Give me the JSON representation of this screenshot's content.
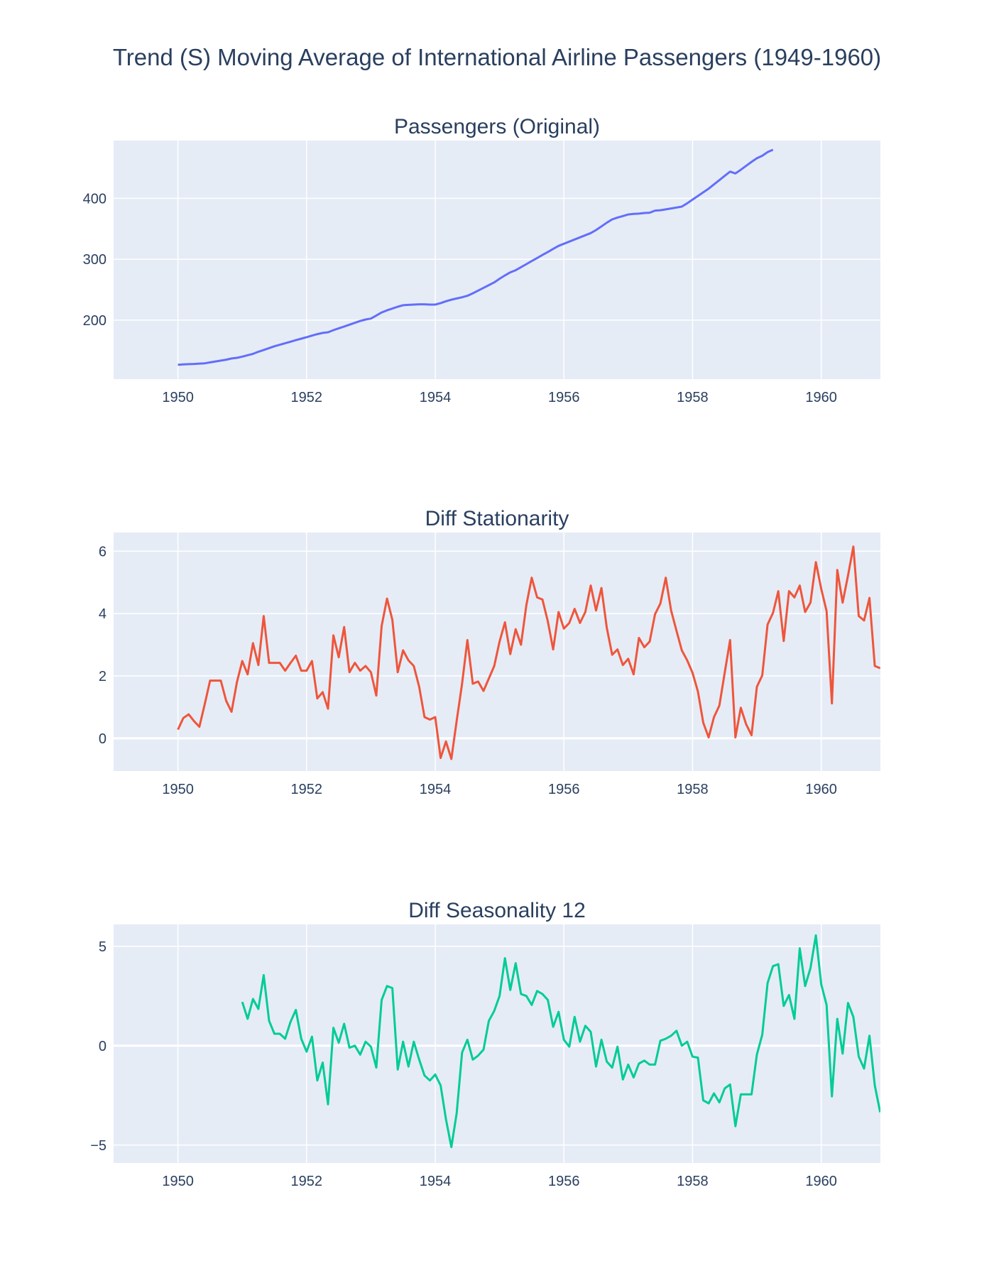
{
  "chart_title": "Trend (S) Moving Average of International Airline Passengers (1949-1960)",
  "colors": {
    "plot_bg": "#e5ecf6",
    "grid": "#ffffff",
    "text": "#2a3f5f",
    "series_original": "#636efa",
    "series_stationarity": "#ef553b",
    "series_seasonality": "#00cc96"
  },
  "chart_data": [
    {
      "type": "line",
      "title": "Passengers (Original)",
      "xlabel": "",
      "ylabel": "",
      "x_start": 1950.0,
      "x_step": 0.08333,
      "xlim": [
        1949.0,
        1960.92
      ],
      "ylim": [
        103,
        495
      ],
      "x_ticks": [
        1950,
        1952,
        1954,
        1956,
        1958,
        1960
      ],
      "y_ticks": [
        200,
        300,
        400
      ],
      "grid": true,
      "series": [
        {
          "values": [
            126.7,
            127.2,
            127.6,
            128.0,
            128.6,
            129.0,
            130.5,
            132.0,
            133.5,
            135.0,
            137.0,
            138.0,
            140.0,
            142.3,
            144.5,
            148.0,
            151.0,
            154.0,
            157.0,
            159.5,
            162.0,
            164.5,
            167.0,
            169.5,
            172.0,
            174.5,
            177.0,
            179.0,
            180.0,
            183.5,
            186.5,
            189.5,
            192.5,
            195.5,
            198.5,
            201.0,
            202.5,
            207.5,
            212.5,
            216.0,
            219.0,
            222.0,
            224.5,
            225.0,
            225.5,
            226.0,
            226.0,
            225.5,
            225.5,
            228.0,
            231.0,
            233.5,
            235.5,
            237.5,
            240.0,
            244.0,
            248.5,
            253.0,
            257.5,
            262.0,
            268.0,
            273.5,
            278.5,
            282.0,
            287.0,
            292.0,
            297.0,
            302.0,
            307.0,
            312.0,
            317.0,
            322.0,
            325.5,
            329.0,
            332.5,
            336.0,
            339.5,
            343.0,
            348.0,
            354.0,
            360.0,
            365.5,
            368.5,
            371.0,
            373.5,
            374.5,
            375.0,
            376.0,
            376.5,
            380.0,
            380.5,
            382.0,
            383.5,
            385.0,
            386.5,
            392.0,
            398.0,
            404.0,
            410.0,
            416.0,
            423.0,
            430.0,
            437.0,
            444.0,
            441.0,
            447.0,
            453.5,
            460.0,
            466.0,
            470.0,
            476.0,
            480.0
          ]
        }
      ]
    },
    {
      "type": "line",
      "title": "Diff Stationarity",
      "xlabel": "",
      "ylabel": "",
      "x_start": 1950.0,
      "x_step": 0.08333,
      "xlim": [
        1949.0,
        1960.92
      ],
      "ylim": [
        -1.05,
        6.6
      ],
      "x_ticks": [
        1950,
        1952,
        1954,
        1956,
        1958,
        1960
      ],
      "y_ticks": [
        0,
        2,
        4,
        6
      ],
      "grid": true,
      "series": [
        {
          "values": [
            0.28,
            0.65,
            0.77,
            0.55,
            0.37,
            1.1,
            1.85,
            1.85,
            1.85,
            1.2,
            0.85,
            1.8,
            2.48,
            2.05,
            3.05,
            2.35,
            3.92,
            2.42,
            2.42,
            2.42,
            2.17,
            2.42,
            2.65,
            2.17,
            2.17,
            2.48,
            1.28,
            1.48,
            0.95,
            3.3,
            2.6,
            3.57,
            2.12,
            2.42,
            2.17,
            2.32,
            2.12,
            1.37,
            3.6,
            4.48,
            3.8,
            2.12,
            2.82,
            2.5,
            2.32,
            1.65,
            0.68,
            0.6,
            0.68,
            -0.63,
            -0.1,
            -0.66,
            0.56,
            1.75,
            3.15,
            1.75,
            1.82,
            1.52,
            1.92,
            2.32,
            3.1,
            3.72,
            2.7,
            3.5,
            3.0,
            4.28,
            5.15,
            4.52,
            4.45,
            3.75,
            2.85,
            4.05,
            3.52,
            3.7,
            4.15,
            3.7,
            4.05,
            4.9,
            4.1,
            4.82,
            3.55,
            2.68,
            2.85,
            2.35,
            2.55,
            2.05,
            3.22,
            2.92,
            3.1,
            3.98,
            4.32,
            5.15,
            4.1,
            3.45,
            2.82,
            2.5,
            2.1,
            1.5,
            0.5,
            0.03,
            0.68,
            1.05,
            2.1,
            3.15,
            0.03,
            0.98,
            0.45,
            0.1,
            1.65,
            2.02,
            3.65,
            4.02,
            4.72,
            3.12,
            4.72,
            4.52,
            4.9,
            4.05,
            4.35,
            5.65,
            4.8,
            4.08,
            1.12,
            5.4,
            4.35,
            5.22,
            6.15,
            3.92,
            3.78,
            4.5,
            2.32,
            2.25
          ]
        }
      ]
    },
    {
      "type": "line",
      "title": "Diff Seasonality 12",
      "xlabel": "",
      "ylabel": "",
      "x_start": 1951.0,
      "x_step": 0.08333,
      "xlim": [
        1949.0,
        1960.92
      ],
      "ylim": [
        -5.9,
        6.1
      ],
      "x_ticks": [
        1950,
        1952,
        1954,
        1956,
        1958,
        1960
      ],
      "y_ticks": [
        -5,
        0,
        5
      ],
      "y_tick_labels": [
        "−5",
        "0",
        "5"
      ],
      "grid": true,
      "series": [
        {
          "values": [
            2.2,
            1.35,
            2.35,
            1.85,
            3.55,
            1.25,
            0.6,
            0.6,
            0.35,
            1.2,
            1.8,
            0.35,
            -0.3,
            0.45,
            -1.75,
            -0.85,
            -2.95,
            0.9,
            0.15,
            1.1,
            -0.1,
            0.0,
            -0.45,
            0.2,
            -0.05,
            -1.1,
            2.3,
            3.0,
            2.9,
            -1.2,
            0.2,
            -1.05,
            0.2,
            -0.7,
            -1.5,
            -1.75,
            -1.45,
            -2.0,
            -3.7,
            -5.1,
            -3.4,
            -0.35,
            0.3,
            -0.7,
            -0.5,
            -0.2,
            1.25,
            1.75,
            2.5,
            4.4,
            2.8,
            4.15,
            2.6,
            2.5,
            2.05,
            2.75,
            2.6,
            2.3,
            0.95,
            1.7,
            0.3,
            -0.05,
            1.45,
            0.2,
            1.0,
            0.7,
            -1.05,
            0.3,
            -0.8,
            -1.1,
            -0.05,
            -1.7,
            -0.95,
            -1.6,
            -0.9,
            -0.75,
            -0.95,
            -0.95,
            0.25,
            0.35,
            0.5,
            0.75,
            0.0,
            0.2,
            -0.55,
            -0.6,
            -2.75,
            -2.9,
            -2.4,
            -2.85,
            -2.15,
            -1.95,
            -4.05,
            -2.45,
            -2.45,
            -2.45,
            -0.45,
            0.55,
            3.15,
            4.0,
            4.1,
            2.0,
            2.55,
            1.35,
            4.9,
            3.0,
            3.9,
            5.55,
            3.1,
            2.05,
            -2.55,
            1.35,
            -0.4,
            2.15,
            1.45,
            -0.55,
            -1.15,
            0.5,
            -2.0,
            -3.35
          ]
        }
      ]
    }
  ]
}
